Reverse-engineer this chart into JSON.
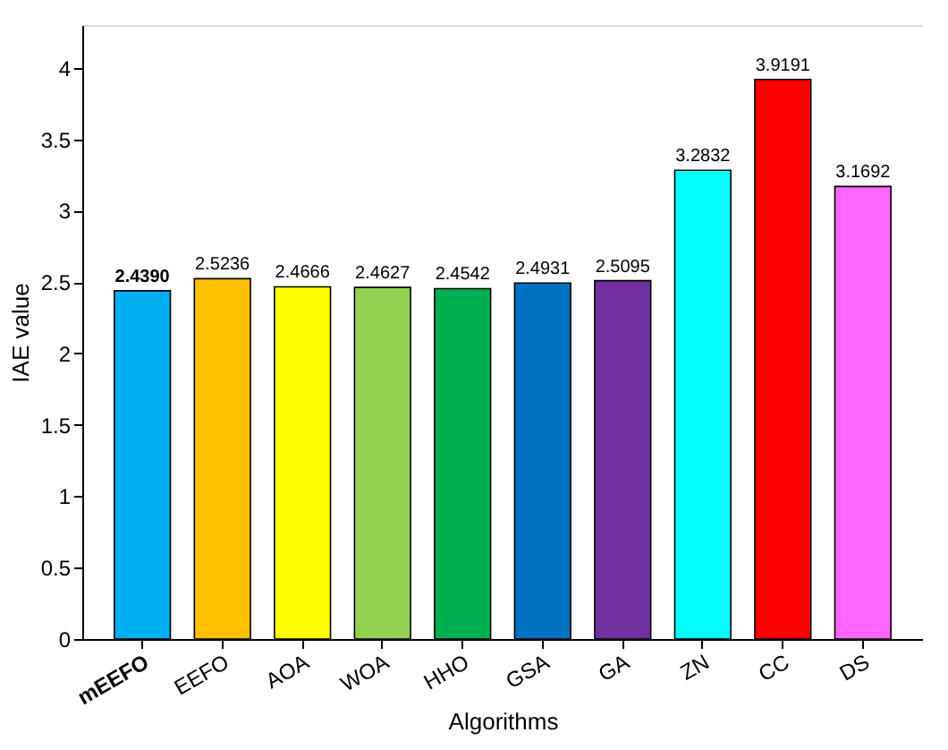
{
  "chart_data": {
    "type": "bar",
    "xlabel": "Algorithms",
    "ylabel": "IAE value",
    "categories": [
      "mEEFO",
      "EEFO",
      "AOA",
      "WOA",
      "HHO",
      "GSA",
      "GA",
      "ZN",
      "CC",
      "DS"
    ],
    "values": [
      2.439,
      2.5236,
      2.4666,
      2.4627,
      2.4542,
      2.4931,
      2.5095,
      3.2832,
      3.9191,
      3.1692
    ],
    "value_labels": [
      "2.4390",
      "2.5236",
      "2.4666",
      "2.4627",
      "2.4542",
      "2.4931",
      "2.5095",
      "3.2832",
      "3.9191",
      "3.1692"
    ],
    "colors": [
      "#00b0f0",
      "#ffc000",
      "#ffff00",
      "#92d050",
      "#00b050",
      "#0070c0",
      "#7030a0",
      "#00ffff",
      "#ff0000",
      "#ff66ff"
    ],
    "ylim": [
      0,
      4.3
    ],
    "yticks": [
      0,
      0.5,
      1,
      1.5,
      2,
      2.5,
      3,
      3.5,
      4
    ],
    "grid": false
  }
}
